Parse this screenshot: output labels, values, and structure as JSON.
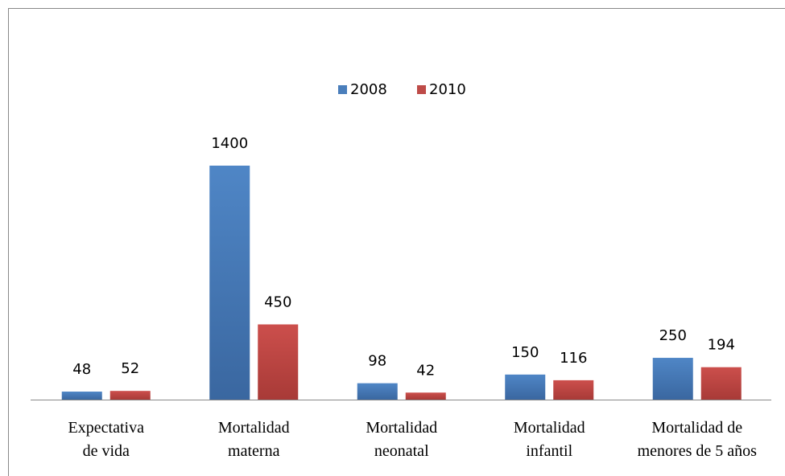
{
  "chart_data": {
    "type": "bar",
    "categories": [
      "Expectativa\nde vida",
      "Mortalidad\nmaterna",
      "Mortalidad\nneonatal",
      "Mortalidad\ninfantil",
      "Mortalidad de\nmenores de 5 años"
    ],
    "series": [
      {
        "name": "2008",
        "color": "#4a7ebb",
        "values": [
          48,
          1400,
          98,
          150,
          250
        ]
      },
      {
        "name": "2010",
        "color": "#be4b48",
        "values": [
          52,
          450,
          42,
          116,
          194
        ]
      }
    ],
    "legend": "top"
  }
}
